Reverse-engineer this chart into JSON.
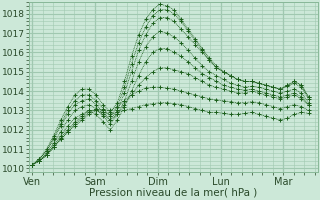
{
  "xlabel": "Pression niveau de la mer( hPa )",
  "ylim": [
    1009.8,
    1018.6
  ],
  "yticks": [
    1010,
    1011,
    1012,
    1013,
    1014,
    1015,
    1016,
    1017,
    1018
  ],
  "day_labels": [
    "Ven",
    "Sam",
    "Dim",
    "Lun",
    "Mar"
  ],
  "day_positions": [
    0.0,
    1.0,
    2.0,
    3.0,
    4.0
  ],
  "xlim": [
    -0.05,
    4.55
  ],
  "bg_color": "#cce8d8",
  "grid_color": "#a0c8b0",
  "line_color": "#1a5e1a",
  "series": [
    [
      1010.2,
      1010.4,
      1010.7,
      1011.1,
      1011.5,
      1011.9,
      1012.2,
      1012.5,
      1012.8,
      1013.0,
      1012.9,
      1012.8,
      1012.9,
      1013.0,
      1013.1,
      1013.2,
      1013.3,
      1013.35,
      1013.4,
      1013.4,
      1013.35,
      1013.3,
      1013.2,
      1013.1,
      1013.0,
      1012.9,
      1012.9,
      1012.85,
      1012.8,
      1012.8,
      1012.85,
      1012.9,
      1012.8,
      1012.7,
      1012.6,
      1012.5,
      1012.6,
      1012.8,
      1012.9,
      1012.85
    ],
    [
      1010.2,
      1010.4,
      1010.7,
      1011.1,
      1011.5,
      1011.9,
      1012.3,
      1012.6,
      1012.9,
      1013.1,
      1013.0,
      1013.0,
      1013.2,
      1013.5,
      1013.8,
      1014.0,
      1014.15,
      1014.2,
      1014.2,
      1014.15,
      1014.1,
      1014.0,
      1013.9,
      1013.8,
      1013.7,
      1013.6,
      1013.55,
      1013.5,
      1013.45,
      1013.4,
      1013.4,
      1013.45,
      1013.4,
      1013.3,
      1013.2,
      1013.1,
      1013.2,
      1013.3,
      1013.2,
      1013.0
    ],
    [
      1010.2,
      1010.4,
      1010.7,
      1011.1,
      1011.6,
      1012.0,
      1012.4,
      1012.7,
      1013.0,
      1013.0,
      1012.8,
      1012.5,
      1012.8,
      1013.3,
      1013.8,
      1014.3,
      1014.7,
      1015.0,
      1015.2,
      1015.2,
      1015.1,
      1015.0,
      1014.9,
      1014.7,
      1014.5,
      1014.3,
      1014.2,
      1014.1,
      1014.0,
      1013.9,
      1013.9,
      1014.0,
      1013.9,
      1013.8,
      1013.7,
      1013.6,
      1013.7,
      1013.8,
      1013.6,
      1013.3
    ],
    [
      1010.2,
      1010.4,
      1010.7,
      1011.2,
      1011.7,
      1012.2,
      1012.6,
      1012.8,
      1013.0,
      1012.8,
      1012.4,
      1012.0,
      1012.5,
      1013.2,
      1014.0,
      1014.8,
      1015.5,
      1016.0,
      1016.2,
      1016.2,
      1016.0,
      1015.8,
      1015.5,
      1015.2,
      1014.9,
      1014.7,
      1014.5,
      1014.3,
      1014.2,
      1014.1,
      1014.05,
      1014.1,
      1014.0,
      1013.9,
      1013.8,
      1013.7,
      1013.8,
      1013.9,
      1013.7,
      1013.3
    ],
    [
      1010.2,
      1010.4,
      1010.8,
      1011.3,
      1011.9,
      1012.5,
      1013.0,
      1013.2,
      1013.3,
      1013.1,
      1012.7,
      1012.3,
      1012.8,
      1013.5,
      1014.5,
      1015.5,
      1016.3,
      1016.8,
      1017.1,
      1017.0,
      1016.8,
      1016.5,
      1016.1,
      1015.7,
      1015.3,
      1015.0,
      1014.8,
      1014.6,
      1014.4,
      1014.3,
      1014.2,
      1014.25,
      1014.2,
      1014.1,
      1014.0,
      1013.9,
      1014.0,
      1014.1,
      1013.9,
      1013.4
    ],
    [
      1010.2,
      1010.5,
      1010.9,
      1011.5,
      1012.2,
      1012.8,
      1013.3,
      1013.5,
      1013.6,
      1013.3,
      1012.9,
      1012.5,
      1013.0,
      1013.9,
      1015.0,
      1016.1,
      1016.9,
      1017.5,
      1017.8,
      1017.8,
      1017.6,
      1017.2,
      1016.8,
      1016.4,
      1016.0,
      1015.6,
      1015.2,
      1015.0,
      1014.8,
      1014.6,
      1014.5,
      1014.5,
      1014.4,
      1014.3,
      1014.2,
      1014.1,
      1014.25,
      1014.4,
      1014.2,
      1013.6
    ],
    [
      1010.2,
      1010.5,
      1010.9,
      1011.6,
      1012.3,
      1013.0,
      1013.5,
      1013.8,
      1013.8,
      1013.5,
      1013.1,
      1012.7,
      1013.2,
      1014.2,
      1015.4,
      1016.5,
      1017.3,
      1017.9,
      1018.2,
      1018.2,
      1018.0,
      1017.6,
      1017.1,
      1016.6,
      1016.1,
      1015.6,
      1015.2,
      1015.0,
      1014.8,
      1014.6,
      1014.5,
      1014.5,
      1014.4,
      1014.3,
      1014.2,
      1014.1,
      1014.3,
      1014.5,
      1014.3,
      1013.7
    ],
    [
      1010.2,
      1010.5,
      1011.0,
      1011.7,
      1012.5,
      1013.2,
      1013.8,
      1014.1,
      1014.1,
      1013.8,
      1013.3,
      1012.9,
      1013.4,
      1014.5,
      1015.8,
      1016.9,
      1017.7,
      1018.2,
      1018.5,
      1018.4,
      1018.2,
      1017.7,
      1017.2,
      1016.7,
      1016.2,
      1015.7,
      1015.3,
      1015.0,
      1014.8,
      1014.6,
      1014.5,
      1014.5,
      1014.4,
      1014.3,
      1014.2,
      1014.1,
      1014.3,
      1014.5,
      1014.3,
      1013.7
    ]
  ]
}
